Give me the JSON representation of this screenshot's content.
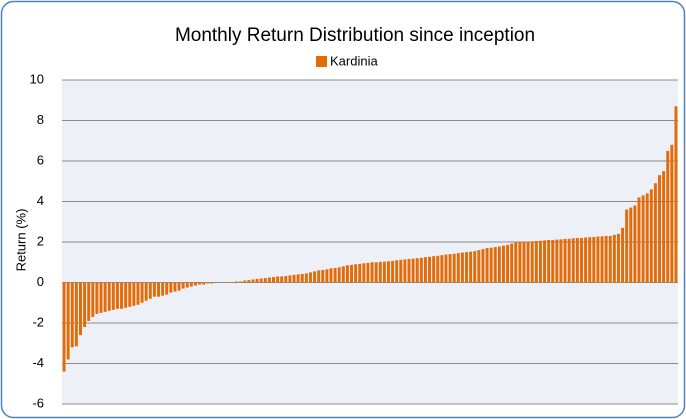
{
  "chart_data": {
    "type": "bar",
    "title": "Monthly Return Distribution since inception",
    "y_label": "Return (%)",
    "series": [
      {
        "name": "Kardinia",
        "color": "#e36c09",
        "values": [
          -4.4,
          -3.8,
          -3.2,
          -3.15,
          -2.6,
          -2.2,
          -1.9,
          -1.7,
          -1.55,
          -1.5,
          -1.45,
          -1.4,
          -1.35,
          -1.3,
          -1.3,
          -1.25,
          -1.2,
          -1.15,
          -1.1,
          -1.0,
          -0.9,
          -0.8,
          -0.7,
          -0.7,
          -0.65,
          -0.6,
          -0.5,
          -0.45,
          -0.4,
          -0.3,
          -0.25,
          -0.2,
          -0.15,
          -0.1,
          -0.1,
          -0.05,
          -0.05,
          0,
          0,
          0,
          0.02,
          0.02,
          0.05,
          0.05,
          0.1,
          0.12,
          0.15,
          0.18,
          0.2,
          0.22,
          0.25,
          0.27,
          0.3,
          0.3,
          0.32,
          0.35,
          0.38,
          0.4,
          0.42,
          0.45,
          0.5,
          0.55,
          0.6,
          0.62,
          0.65,
          0.7,
          0.72,
          0.75,
          0.8,
          0.85,
          0.87,
          0.9,
          0.92,
          0.95,
          0.97,
          1.0,
          1.0,
          1.02,
          1.03,
          1.05,
          1.07,
          1.1,
          1.12,
          1.14,
          1.16,
          1.18,
          1.2,
          1.22,
          1.25,
          1.27,
          1.3,
          1.32,
          1.35,
          1.38,
          1.4,
          1.42,
          1.45,
          1.48,
          1.5,
          1.52,
          1.55,
          1.6,
          1.65,
          1.7,
          1.72,
          1.75,
          1.78,
          1.82,
          1.86,
          1.92,
          1.98,
          2.0,
          2.0,
          2.02,
          2.03,
          2.05,
          2.06,
          2.08,
          2.1,
          2.1,
          2.12,
          2.13,
          2.15,
          2.16,
          2.18,
          2.2,
          2.2,
          2.22,
          2.24,
          2.25,
          2.27,
          2.28,
          2.3,
          2.3,
          2.35,
          2.4,
          2.7,
          3.6,
          3.7,
          3.8,
          4.2,
          4.3,
          4.4,
          4.6,
          4.9,
          5.3,
          5.5,
          6.5,
          6.8,
          8.7
        ]
      }
    ],
    "categories": [
      null,
      null,
      null,
      null,
      null,
      null,
      null,
      null,
      null,
      null,
      null,
      null,
      null,
      null,
      null,
      null,
      null,
      null,
      null,
      null,
      null,
      null,
      null,
      null,
      null,
      null,
      null,
      null,
      null,
      null,
      null,
      null,
      null,
      null,
      null,
      null,
      null,
      null,
      null,
      null,
      null,
      null,
      null,
      null,
      null,
      null,
      null,
      null,
      null,
      null,
      null,
      null,
      null,
      null,
      null,
      null,
      null,
      null,
      null,
      null,
      null,
      null,
      null,
      null,
      null,
      null,
      null,
      null,
      null,
      null,
      null,
      null,
      null,
      null,
      null,
      null,
      null,
      null,
      null,
      null,
      null,
      null,
      null,
      null,
      null,
      null,
      null,
      null,
      null,
      null,
      null,
      null,
      null,
      null,
      null,
      null,
      null,
      null,
      null,
      null,
      null,
      null,
      null,
      null,
      null,
      null,
      null,
      null,
      null,
      null,
      null,
      null,
      null,
      null,
      null,
      null,
      null,
      null,
      null,
      null,
      null,
      null,
      null,
      null,
      null,
      null,
      null,
      null,
      null,
      null,
      null,
      null,
      null,
      null,
      null,
      null,
      null,
      null,
      null,
      null,
      null,
      null,
      null,
      null,
      null,
      null,
      null,
      null,
      null,
      null
    ],
    "ylim": [
      -6,
      10
    ],
    "yticks": [
      -6,
      -4,
      -2,
      0,
      2,
      4,
      6,
      8,
      10
    ],
    "grid": true,
    "legend": "top",
    "negative_tick_color": "#ff0000"
  }
}
